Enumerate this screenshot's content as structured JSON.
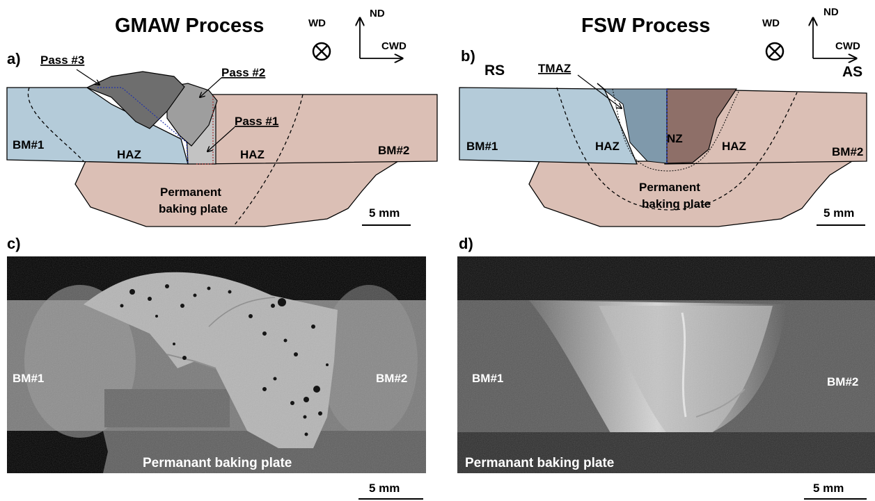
{
  "panels": {
    "a": {
      "letter": "a)",
      "title": "GMAW Process",
      "labels": {
        "pass3": "Pass #3",
        "pass2": "Pass #2",
        "pass1": "Pass #1",
        "bm1": "BM#1",
        "bm2": "BM#2",
        "haz_left": "HAZ",
        "haz_right": "HAZ",
        "plate_line1": "Permanent",
        "plate_line2": "baking plate",
        "scale": "5 mm"
      }
    },
    "b": {
      "letter": "b)",
      "title": "FSW Process",
      "labels": {
        "rs": "RS",
        "as": "AS",
        "tmaz": "TMAZ",
        "nz": "NZ",
        "bm1": "BM#1",
        "bm2": "BM#2",
        "haz_left": "HAZ",
        "haz_right": "HAZ",
        "plate_line1": "Permanent",
        "plate_line2": "baking plate",
        "scale": "5 mm"
      }
    },
    "c": {
      "letter": "c)",
      "labels": {
        "bm1": "BM#1",
        "bm2": "BM#2",
        "plate": "Permanant baking plate",
        "scale": "5 mm"
      }
    },
    "d": {
      "letter": "d)",
      "labels": {
        "bm1": "BM#1",
        "bm2": "BM#2",
        "plate": "Permanant baking plate",
        "scale": "5 mm"
      }
    }
  },
  "axes": {
    "wd": "WD",
    "nd": "ND",
    "cwd": "CWD"
  },
  "colors": {
    "bm1_fill": "#b4cbd9",
    "bm2_fill": "#dbbfb5",
    "pass_dark": "#6e6e6e",
    "pass_mid": "#9e9e9e",
    "pass_light": "#c3c3c3",
    "nz_fill": "#8e6f68"
  }
}
